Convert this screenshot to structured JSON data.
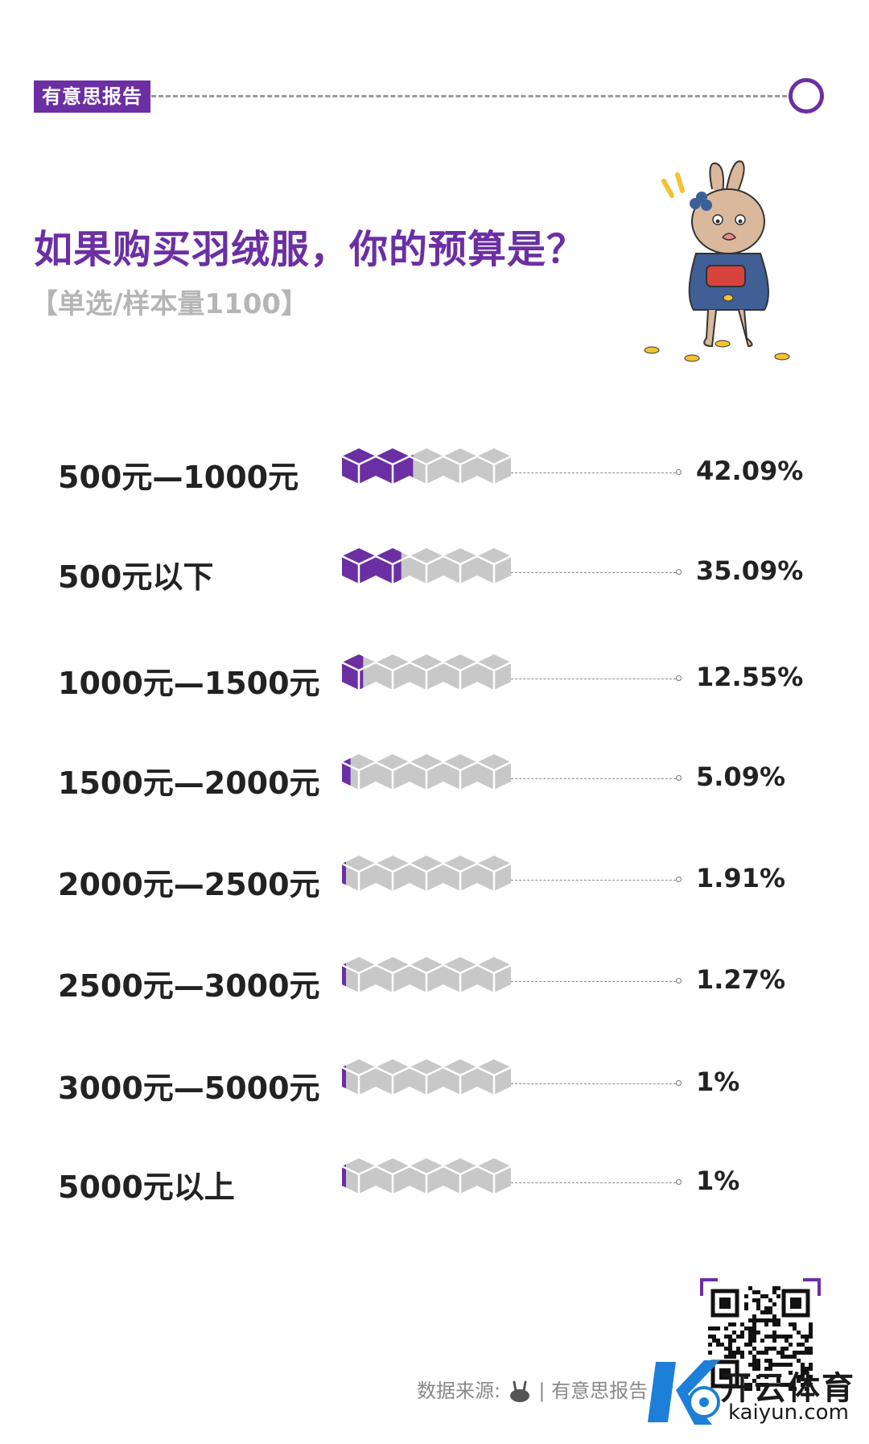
{
  "header": {
    "tag": "有意思报告"
  },
  "chart_data": {
    "type": "bar",
    "title": "如果购买羽绒服，你的预算是？",
    "subtitle": "【单选/样本量1100】",
    "categories": [
      "500元—1000元",
      "500元以下",
      "1000元—1500元",
      "1500元—2000元",
      "2000元—2500元",
      "2500元—3000元",
      "3000元—5000元",
      "5000元以上"
    ],
    "values": [
      42.09,
      35.09,
      12.55,
      5.09,
      1.91,
      1.27,
      1,
      1
    ],
    "value_labels": [
      "42.09%",
      "35.09%",
      "12.55%",
      "5.09%",
      "1.91%",
      "1.27%",
      "1%",
      "1%"
    ],
    "xlim": [
      0,
      100
    ],
    "colors": {
      "fill": "#6b2fa3",
      "empty": "#c8c8c8"
    }
  },
  "footer": {
    "source_prefix": "数据来源:",
    "source_name": "| 有意思报告"
  },
  "watermark": {
    "brand": "开云体育",
    "domain": "kaiyun.com"
  }
}
